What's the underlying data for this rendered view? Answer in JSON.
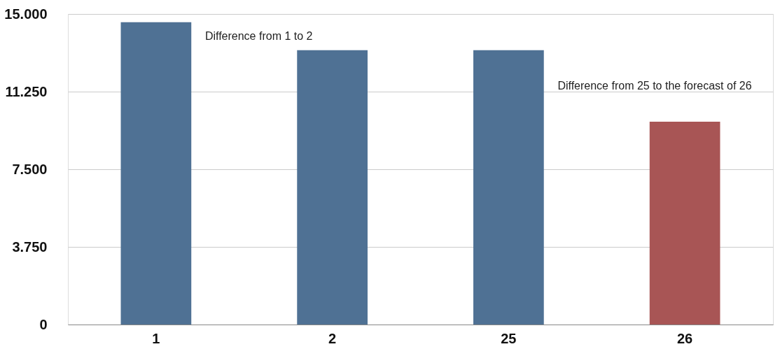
{
  "chart_data": {
    "type": "bar",
    "categories": [
      "1",
      "2",
      "25",
      "26"
    ],
    "values": [
      14600,
      13250,
      13250,
      9800
    ],
    "colors": [
      "#4f7194",
      "#4f7194",
      "#4f7194",
      "#a85555"
    ],
    "ylim": [
      0,
      15000
    ],
    "yticks": [
      0,
      {
        "value": 3750,
        "label": "3.750"
      },
      {
        "value": 7500,
        "label": "7.500"
      },
      {
        "value": 11250,
        "label": "11.250"
      },
      {
        "value": 15000,
        "label": "15.000"
      }
    ],
    "grid": "y",
    "annotations": [
      "Difference from 1 to 2",
      "Difference from 25 to the forecast of 26"
    ]
  }
}
